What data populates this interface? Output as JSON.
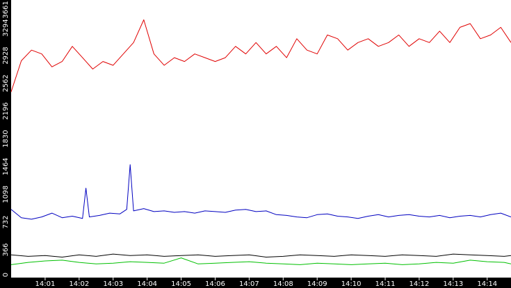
{
  "chart_data": {
    "type": "line",
    "title": "",
    "xlabel": "",
    "ylabel": "",
    "ylim": [
      0,
      3661
    ],
    "xlim": [
      0,
      14.7
    ],
    "grid": false,
    "legend": "none",
    "y_ticks": [
      0,
      366,
      732,
      1098,
      1464,
      1830,
      2196,
      2562,
      2928,
      3294,
      3661
    ],
    "x_ticks": [
      {
        "value": 1,
        "label": "14:01"
      },
      {
        "value": 2,
        "label": "14:02"
      },
      {
        "value": 3,
        "label": "14:03"
      },
      {
        "value": 4,
        "label": "14:04"
      },
      {
        "value": 5,
        "label": "14:05"
      },
      {
        "value": 6,
        "label": "14:06"
      },
      {
        "value": 7,
        "label": "14:07"
      },
      {
        "value": 8,
        "label": "14:08"
      },
      {
        "value": 9,
        "label": "14:09"
      },
      {
        "value": 10,
        "label": "14:10"
      },
      {
        "value": 11,
        "label": "14:11"
      },
      {
        "value": 12,
        "label": "14:12"
      },
      {
        "value": 13,
        "label": "14:13"
      },
      {
        "value": 14,
        "label": "14:14"
      }
    ],
    "series": [
      {
        "color": "#e00000",
        "x": [
          0,
          0.3,
          0.6,
          0.9,
          1.2,
          1.5,
          1.8,
          2.1,
          2.4,
          2.7,
          3.0,
          3.3,
          3.6,
          3.9,
          4.2,
          4.5,
          4.8,
          5.1,
          5.4,
          5.7,
          6.0,
          6.3,
          6.6,
          6.9,
          7.2,
          7.5,
          7.8,
          8.1,
          8.4,
          8.7,
          9.0,
          9.3,
          9.6,
          9.9,
          10.2,
          10.5,
          10.8,
          11.1,
          11.4,
          11.7,
          12.0,
          12.3,
          12.6,
          12.9,
          13.2,
          13.5,
          13.8,
          14.1,
          14.4,
          14.7
        ],
        "values": [
          2450,
          2860,
          3000,
          2950,
          2780,
          2850,
          3050,
          2900,
          2750,
          2850,
          2800,
          2950,
          3100,
          3400,
          2950,
          2800,
          2900,
          2850,
          2950,
          2900,
          2850,
          2900,
          3050,
          2950,
          3100,
          2950,
          3050,
          2900,
          3150,
          3000,
          2950,
          3200,
          3150,
          3000,
          3100,
          3150,
          3050,
          3100,
          3200,
          3050,
          3150,
          3100,
          3250,
          3100,
          3300,
          3350,
          3150,
          3200,
          3300,
          3100
        ]
      },
      {
        "color": "#0000c0",
        "x": [
          0,
          0.3,
          0.6,
          0.9,
          1.2,
          1.5,
          1.8,
          2.1,
          2.2,
          2.3,
          2.6,
          2.9,
          3.2,
          3.4,
          3.5,
          3.6,
          3.9,
          4.2,
          4.5,
          4.8,
          5.1,
          5.4,
          5.7,
          6.0,
          6.3,
          6.6,
          6.9,
          7.2,
          7.5,
          7.8,
          8.1,
          8.4,
          8.7,
          9.0,
          9.3,
          9.6,
          9.9,
          10.2,
          10.5,
          10.8,
          11.1,
          11.4,
          11.7,
          12.0,
          12.3,
          12.6,
          12.9,
          13.2,
          13.5,
          13.8,
          14.1,
          14.4,
          14.7
        ],
        "values": [
          900,
          790,
          770,
          800,
          850,
          790,
          810,
          780,
          1180,
          800,
          820,
          850,
          840,
          900,
          1490,
          880,
          910,
          870,
          880,
          860,
          870,
          850,
          880,
          870,
          860,
          890,
          900,
          870,
          880,
          830,
          820,
          800,
          790,
          830,
          840,
          810,
          800,
          780,
          810,
          830,
          800,
          820,
          830,
          810,
          800,
          820,
          790,
          810,
          820,
          800,
          830,
          850,
          800
        ]
      },
      {
        "color": "#000000",
        "x": [
          0,
          0.5,
          1.0,
          1.5,
          2.0,
          2.5,
          3.0,
          3.5,
          4.0,
          4.5,
          5.0,
          5.5,
          6.0,
          6.5,
          7.0,
          7.5,
          8.0,
          8.5,
          9.0,
          9.5,
          10.0,
          10.5,
          11.0,
          11.5,
          12.0,
          12.5,
          13.0,
          13.5,
          14.0,
          14.5,
          14.7
        ],
        "values": [
          300,
          280,
          290,
          270,
          300,
          280,
          310,
          290,
          300,
          280,
          290,
          300,
          280,
          290,
          300,
          270,
          280,
          300,
          290,
          280,
          300,
          290,
          280,
          300,
          290,
          280,
          310,
          300,
          290,
          280,
          290
        ]
      },
      {
        "color": "#00c000",
        "x": [
          0,
          0.5,
          1.0,
          1.5,
          2.0,
          2.5,
          3.0,
          3.5,
          4.0,
          4.5,
          5.0,
          5.5,
          6.0,
          6.5,
          7.0,
          7.5,
          8.0,
          8.5,
          9.0,
          9.5,
          10.0,
          10.5,
          11.0,
          11.5,
          12.0,
          12.5,
          13.0,
          13.5,
          14.0,
          14.5,
          14.7
        ],
        "values": [
          170,
          200,
          220,
          230,
          200,
          180,
          190,
          210,
          200,
          190,
          260,
          180,
          190,
          200,
          210,
          190,
          180,
          170,
          190,
          180,
          170,
          180,
          190,
          170,
          180,
          200,
          190,
          230,
          210,
          200,
          180
        ]
      }
    ]
  }
}
